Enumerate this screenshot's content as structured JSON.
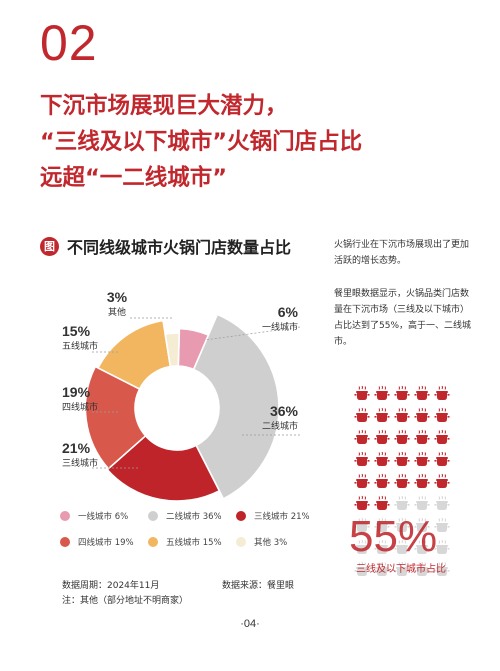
{
  "section_number": "02",
  "headline": [
    "下沉市场展现巨大潜力，",
    "“三线及以下城市”火锅门店占比",
    "远超“一二线城市”"
  ],
  "chart_badge_icon": "图",
  "chart_title": "不同线级城市火锅门店数量占比",
  "chart_data": {
    "type": "pie",
    "title": "不同线级城市火锅门店数量占比",
    "categories": [
      "一线城市",
      "二线城市",
      "三线城市",
      "四线城市",
      "五线城市",
      "其他"
    ],
    "values": [
      6,
      36,
      21,
      19,
      15,
      3
    ],
    "colors": [
      "#e79ab0",
      "#cfcfcf",
      "#c0242b",
      "#d9584c",
      "#f2b660",
      "#f5ecd4"
    ],
    "labels": [
      {
        "pct": "6%",
        "name": "一线城市"
      },
      {
        "pct": "36%",
        "name": "二线城市"
      },
      {
        "pct": "21%",
        "name": "三线城市"
      },
      {
        "pct": "19%",
        "name": "四线城市"
      },
      {
        "pct": "15%",
        "name": "五线城市"
      },
      {
        "pct": "3%",
        "name": "其他"
      }
    ],
    "legend": [
      "一线城市 6%",
      "二线城市 36%",
      "三线城市 21%",
      "四线城市 19%",
      "五线城市 15%",
      "其他 3%"
    ],
    "legend_placement": "bottom"
  },
  "side_text": {
    "p1": "火锅行业在下沉市场展现出了更加活跃的增长态势。",
    "p2": "餐里眼数据显示，火锅品类门店数量在下沉市场（三线及以下城市）占比达到了55%，高于一、二线城市。"
  },
  "infographic": {
    "value": "55%",
    "caption": "三线及以下城市占比",
    "icon": "hotpot-icon",
    "highlighted_fraction": 0.55
  },
  "footer": {
    "period": "数据周期：2024年11月",
    "source": "数据来源：餐里眼",
    "note": "注：其他（部分地址不明商家）"
  },
  "page_number": "·04·"
}
